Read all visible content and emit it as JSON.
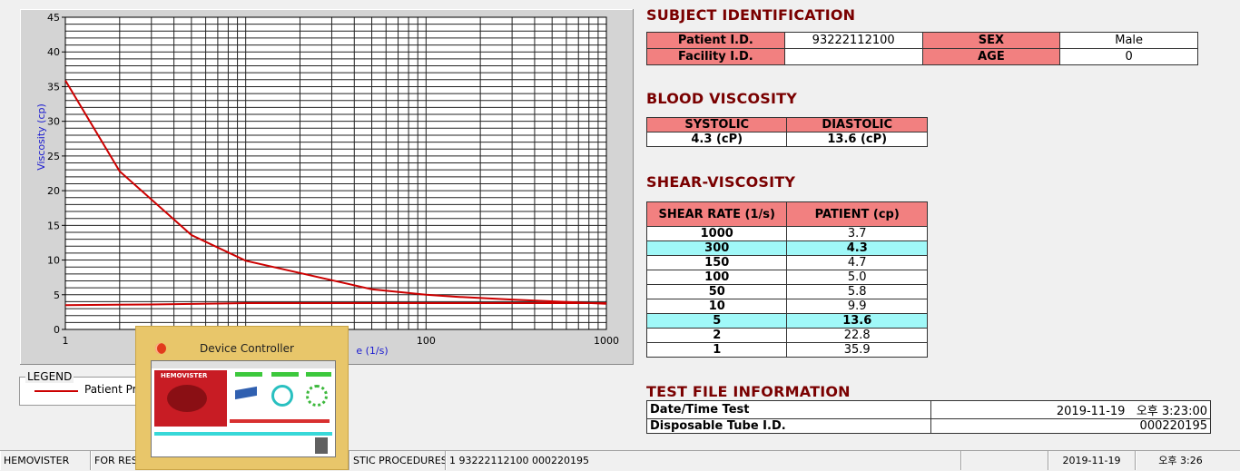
{
  "chart_data": {
    "type": "line",
    "xscale": "log",
    "xlim": [
      1,
      1000
    ],
    "ylim": [
      0,
      45
    ],
    "xticks": [
      "1",
      "100",
      "1000"
    ],
    "yticks": [
      "0",
      "5",
      "10",
      "15",
      "20",
      "25",
      "30",
      "35",
      "40",
      "45"
    ],
    "ylabel": "Viscosity (cp)",
    "xlabel_visible_fragment": "e (1/s)",
    "grid": true,
    "series": [
      {
        "name": "Patient Pr",
        "color": "#cc0000",
        "x": [
          1,
          2,
          5,
          10,
          50,
          100,
          150,
          300,
          1000
        ],
        "y": [
          35.9,
          22.8,
          13.6,
          9.9,
          5.8,
          5.0,
          4.7,
          4.3,
          3.7
        ]
      },
      {
        "name": "",
        "color": "#cc0000",
        "x": [
          1,
          3,
          10,
          1000
        ],
        "y": [
          3.5,
          3.6,
          3.8,
          3.8
        ]
      }
    ]
  },
  "legend": {
    "title": "LEGEND",
    "label": "Patient Pr"
  },
  "subject": {
    "title": "SUBJECT IDENTIFICATION",
    "patient_id_label": "Patient I.D.",
    "patient_id": "93222112100",
    "sex_label": "SEX",
    "sex": "Male",
    "facility_label": "Facility I.D.",
    "facility": "",
    "age_label": "AGE",
    "age": "0"
  },
  "blood": {
    "title": "BLOOD VISCOSITY",
    "systolic_label": "SYSTOLIC",
    "diastolic_label": "DIASTOLIC",
    "systolic": "4.3 (cP)",
    "diastolic": "13.6 (cP)"
  },
  "shear": {
    "title": "SHEAR-VISCOSITY",
    "col_rate": "SHEAR RATE (1/s)",
    "col_patient": "PATIENT (cp)",
    "rows": [
      {
        "rate": "1000",
        "value": "3.7"
      },
      {
        "rate": "300",
        "value": "4.3"
      },
      {
        "rate": "150",
        "value": "4.7"
      },
      {
        "rate": "100",
        "value": "5.0"
      },
      {
        "rate": "50",
        "value": "5.8"
      },
      {
        "rate": "10",
        "value": "9.9"
      },
      {
        "rate": "5",
        "value": "13.6"
      },
      {
        "rate": "2",
        "value": "22.8"
      },
      {
        "rate": "1",
        "value": "35.9"
      }
    ],
    "highlight_color": "#a0f8f8"
  },
  "testfile": {
    "title": "TEST FILE INFORMATION",
    "datetime_label": "Date/Time Test",
    "datetime": "2019-11-19   오후 3:23:00",
    "tube_label": "Disposable Tube I.D.",
    "tube": "000220195"
  },
  "statusbar": {
    "app": "HEMOVISTER",
    "research": "FOR RES",
    "procedures": "STIC PROCEDURES",
    "record": "1  93222112100  000220195",
    "date": "2019-11-19",
    "time": "오후 3:26"
  },
  "popup": {
    "title": "Device Controller",
    "thumb_brand": "HEMOVISTER"
  },
  "colors": {
    "header_red": "#f28080",
    "title_maroon": "#7a0000",
    "curve_red": "#cc0000"
  }
}
